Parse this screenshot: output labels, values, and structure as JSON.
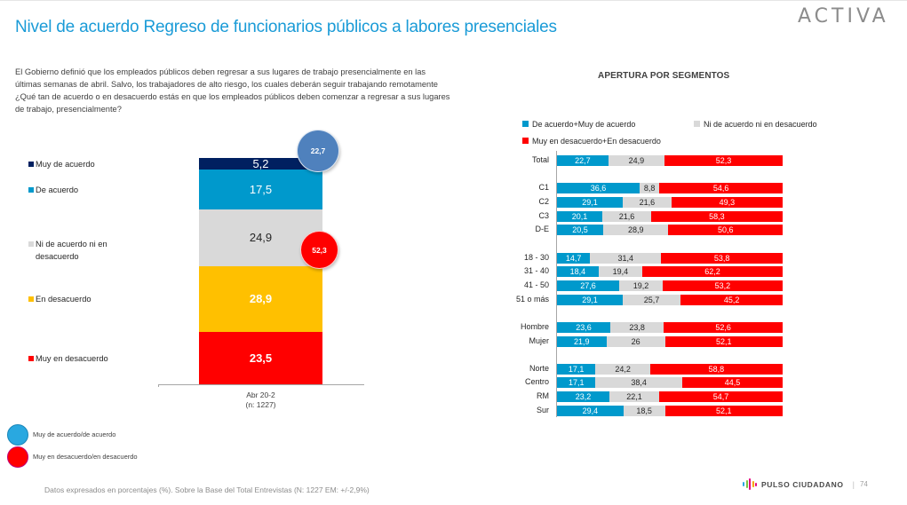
{
  "header": {
    "title": "Nivel de acuerdo Regreso de funcionarios públicos a labores presenciales",
    "brand": "ACTIVA"
  },
  "question": "El Gobierno definió que los empleados públicos deben regresar a sus lugares de trabajo presencialmente en las últimas semanas de abril. Salvo, los trabajadores de alto riesgo, los cuales deberán seguir trabajando remotamente ¿Qué tan de acuerdo o en desacuerdo estás en que los empleados públicos deben comenzar a regresar a sus lugares de trabajo, presencialmente?",
  "colors": {
    "muy_de_acuerdo": "#002060",
    "de_acuerdo": "#0099cc",
    "ni_ni": "#d9d9d9",
    "en_desacuerdo": "#ffc000",
    "muy_en_desacuerdo": "#ff0000",
    "title_blue": "#1a9bd7",
    "bubble_agree": "#4f81bd",
    "circle_agree": "#29a8e0"
  },
  "footnote": "Datos expresados en porcentajes (%). Sobre la Base del Total Entrevistas (N: 1227  EM: +/-2,9%)",
  "circle_legend": [
    {
      "label": "Muy de acuerdo/de acuerdo",
      "color": "#29a8e0"
    },
    {
      "label": "Muy en desacuerdo/en desacuerdo",
      "color": "#ff0000"
    }
  ],
  "footer": {
    "brand": "PULSO CIUDADANO",
    "separator": "|",
    "page": "74"
  },
  "chart_data": [
    {
      "type": "bar",
      "stacked": true,
      "orientation": "vertical",
      "categories": [
        "Abr 20-2"
      ],
      "category_subtitle": "(n: 1227)",
      "series": [
        {
          "name": "Muy de acuerdo",
          "values": [
            5.2
          ],
          "color": "#002060",
          "label_color": "#ffffff"
        },
        {
          "name": "De acuerdo",
          "values": [
            17.5
          ],
          "color": "#0099cc",
          "label_color": "#ffffff"
        },
        {
          "name": "Ni de acuerdo ni en desacuerdo",
          "values": [
            24.9
          ],
          "color": "#d9d9d9",
          "label_color": "#262626"
        },
        {
          "name": "En desacuerdo",
          "values": [
            28.9
          ],
          "color": "#ffc000",
          "label_color": "#ffffff"
        },
        {
          "name": "Muy en desacuerdo",
          "values": [
            23.5
          ],
          "color": "#ff0000",
          "label_color": "#ffffff"
        }
      ],
      "value_labels": [
        "5,2",
        "17,5",
        "24,9",
        "28,9",
        "23,5"
      ],
      "annotations": [
        {
          "label": "22,7",
          "meaning": "Muy de acuerdo/de acuerdo"
        },
        {
          "label": "52,3",
          "meaning": "Muy en desacuerdo/en desacuerdo"
        }
      ],
      "legend_position": "left",
      "title": "",
      "xlabel": "",
      "ylabel": "",
      "ylim": [
        0,
        100
      ]
    },
    {
      "type": "bar",
      "stacked": true,
      "orientation": "horizontal",
      "title": "APERTURA POR SEGMENTOS",
      "legend_position": "top",
      "legend": [
        {
          "name": "De acuerdo+Muy de acuerdo",
          "color": "#0099cc"
        },
        {
          "name": "Ni de acuerdo ni en desacuerdo",
          "color": "#d9d9d9"
        },
        {
          "name": "Muy en desacuerdo+En desacuerdo",
          "color": "#ff0000"
        }
      ],
      "groups": [
        {
          "rows": [
            {
              "label": "Total",
              "values": [
                22.7,
                24.9,
                52.3
              ],
              "labels": [
                "22,7",
                "24,9",
                "52,3"
              ]
            }
          ]
        },
        {
          "rows": [
            {
              "label": "C1",
              "values": [
                36.6,
                8.8,
                54.6
              ],
              "labels": [
                "36,6",
                "8,8",
                "54,6"
              ]
            },
            {
              "label": "C2",
              "values": [
                29.1,
                21.6,
                49.3
              ],
              "labels": [
                "29,1",
                "21,6",
                "49,3"
              ]
            },
            {
              "label": "C3",
              "values": [
                20.1,
                21.6,
                58.3
              ],
              "labels": [
                "20,1",
                "21,6",
                "58,3"
              ]
            },
            {
              "label": "D-E",
              "values": [
                20.5,
                28.9,
                50.6
              ],
              "labels": [
                "20,5",
                "28,9",
                "50,6"
              ]
            }
          ]
        },
        {
          "rows": [
            {
              "label": "18 - 30",
              "values": [
                14.7,
                31.4,
                53.8
              ],
              "labels": [
                "14,7",
                "31,4",
                "53,8"
              ]
            },
            {
              "label": "31 - 40",
              "values": [
                18.4,
                19.4,
                62.2
              ],
              "labels": [
                "18,4",
                "19,4",
                "62,2"
              ]
            },
            {
              "label": "41 - 50",
              "values": [
                27.6,
                19.2,
                53.2
              ],
              "labels": [
                "27,6",
                "19,2",
                "53,2"
              ]
            },
            {
              "label": "51 o más",
              "values": [
                29.1,
                25.7,
                45.2
              ],
              "labels": [
                "29,1",
                "25,7",
                "45,2"
              ]
            }
          ]
        },
        {
          "rows": [
            {
              "label": "Hombre",
              "values": [
                23.6,
                23.8,
                52.6
              ],
              "labels": [
                "23,6",
                "23,8",
                "52,6"
              ]
            },
            {
              "label": "Mujer",
              "values": [
                21.9,
                26,
                52.1
              ],
              "labels": [
                "21,9",
                "26",
                "52,1"
              ]
            }
          ]
        },
        {
          "rows": [
            {
              "label": "Norte",
              "values": [
                17.1,
                24.2,
                58.8
              ],
              "labels": [
                "17,1",
                "24,2",
                "58,8"
              ]
            },
            {
              "label": "Centro",
              "values": [
                17.1,
                38.4,
                44.5
              ],
              "labels": [
                "17,1",
                "38,4",
                "44,5"
              ]
            },
            {
              "label": "RM",
              "values": [
                23.2,
                22.1,
                54.7
              ],
              "labels": [
                "23,2",
                "22,1",
                "54,7"
              ]
            },
            {
              "label": "Sur",
              "values": [
                29.4,
                18.5,
                52.1
              ],
              "labels": [
                "29,4",
                "18,5",
                "52,1"
              ]
            }
          ]
        }
      ],
      "xlim": [
        0,
        100
      ],
      "xlabel": "",
      "ylabel": ""
    }
  ]
}
